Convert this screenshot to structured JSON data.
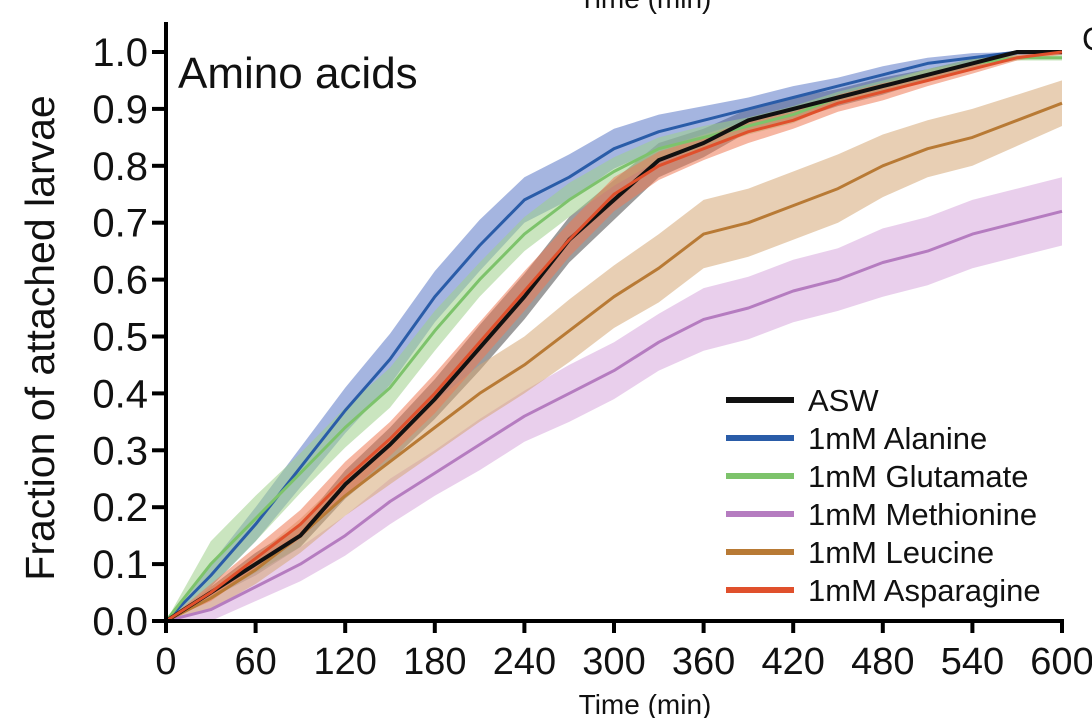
{
  "chart_data": {
    "type": "line",
    "title": "Amino acids",
    "top_clipped_text": "Time (min)",
    "corner_clipped_text": "C",
    "xlabel": "Time (min)",
    "ylabel": "Fraction of attached  larvae",
    "xlim": [
      0,
      600
    ],
    "ylim": [
      0,
      1.0
    ],
    "x_ticks": [
      "0",
      "60",
      "120",
      "180",
      "240",
      "300",
      "360",
      "420",
      "480",
      "540",
      "600"
    ],
    "y_ticks": [
      "0.0",
      "0.1",
      "0.2",
      "0.3",
      "0.4",
      "0.5",
      "0.6",
      "0.7",
      "0.8",
      "0.9",
      "1.0"
    ],
    "grid": false,
    "legend_position": "bottom-right",
    "x": [
      0,
      30,
      60,
      90,
      120,
      150,
      180,
      210,
      240,
      270,
      300,
      330,
      360,
      390,
      420,
      450,
      480,
      510,
      540,
      570,
      600
    ],
    "series": [
      {
        "name": "ASW",
        "color": "#111111",
        "band_color": "#4a4a4a",
        "values": [
          0,
          0.05,
          0.1,
          0.15,
          0.24,
          0.31,
          0.39,
          0.48,
          0.57,
          0.67,
          0.74,
          0.81,
          0.84,
          0.88,
          0.9,
          0.92,
          0.94,
          0.96,
          0.98,
          1.0,
          1.0
        ],
        "spread": [
          0,
          0.01,
          0.02,
          0.02,
          0.025,
          0.03,
          0.035,
          0.04,
          0.04,
          0.04,
          0.035,
          0.03,
          0.025,
          0.02,
          0.02,
          0.015,
          0.015,
          0.01,
          0.008,
          0.005,
          0.005
        ]
      },
      {
        "name": "1mM Alanine",
        "color": "#2a5ca8",
        "band_color": "#5b78c6",
        "values": [
          0,
          0.08,
          0.17,
          0.27,
          0.37,
          0.46,
          0.57,
          0.66,
          0.74,
          0.78,
          0.83,
          0.86,
          0.88,
          0.9,
          0.92,
          0.94,
          0.96,
          0.98,
          0.99,
          1.0,
          1.0
        ],
        "spread": [
          0,
          0.02,
          0.03,
          0.035,
          0.04,
          0.045,
          0.045,
          0.045,
          0.04,
          0.04,
          0.035,
          0.03,
          0.025,
          0.02,
          0.02,
          0.015,
          0.015,
          0.01,
          0.008,
          0.005,
          0.005
        ]
      },
      {
        "name": "1mM Glutamate",
        "color": "#7dc36b",
        "band_color": "#9ed08a",
        "values": [
          0,
          0.1,
          0.18,
          0.26,
          0.34,
          0.41,
          0.51,
          0.6,
          0.68,
          0.74,
          0.79,
          0.83,
          0.85,
          0.87,
          0.89,
          0.92,
          0.94,
          0.96,
          0.98,
          0.99,
          0.99
        ],
        "spread": [
          0,
          0.04,
          0.04,
          0.035,
          0.035,
          0.035,
          0.035,
          0.03,
          0.03,
          0.03,
          0.025,
          0.02,
          0.02,
          0.015,
          0.015,
          0.01,
          0.01,
          0.01,
          0.008,
          0.005,
          0.005
        ]
      },
      {
        "name": "1mM Methionine",
        "color": "#b57cc0",
        "band_color": "#d7a8dc",
        "values": [
          0,
          0.02,
          0.06,
          0.1,
          0.15,
          0.21,
          0.26,
          0.31,
          0.36,
          0.4,
          0.44,
          0.49,
          0.53,
          0.55,
          0.58,
          0.6,
          0.63,
          0.65,
          0.68,
          0.7,
          0.72
        ],
        "spread": [
          0,
          0.02,
          0.025,
          0.03,
          0.035,
          0.04,
          0.04,
          0.045,
          0.045,
          0.05,
          0.05,
          0.05,
          0.055,
          0.055,
          0.055,
          0.055,
          0.06,
          0.06,
          0.06,
          0.06,
          0.06
        ]
      },
      {
        "name": "1mM Leucine",
        "color": "#b87a35",
        "band_color": "#d5a876",
        "values": [
          0,
          0.04,
          0.09,
          0.15,
          0.22,
          0.28,
          0.34,
          0.4,
          0.45,
          0.51,
          0.57,
          0.62,
          0.68,
          0.7,
          0.73,
          0.76,
          0.8,
          0.83,
          0.85,
          0.88,
          0.91
        ],
        "spread": [
          0,
          0.02,
          0.025,
          0.03,
          0.035,
          0.04,
          0.045,
          0.05,
          0.05,
          0.055,
          0.055,
          0.06,
          0.06,
          0.06,
          0.06,
          0.06,
          0.055,
          0.05,
          0.05,
          0.045,
          0.04
        ]
      },
      {
        "name": "1mM Asparagine",
        "color": "#e0502c",
        "band_color": "#ef7a55",
        "values": [
          0,
          0.05,
          0.11,
          0.17,
          0.25,
          0.32,
          0.4,
          0.49,
          0.58,
          0.67,
          0.75,
          0.8,
          0.83,
          0.86,
          0.88,
          0.91,
          0.93,
          0.95,
          0.97,
          0.99,
          1.0
        ],
        "spread": [
          0,
          0.015,
          0.02,
          0.025,
          0.03,
          0.03,
          0.035,
          0.035,
          0.035,
          0.03,
          0.03,
          0.025,
          0.02,
          0.02,
          0.015,
          0.015,
          0.015,
          0.01,
          0.008,
          0.005,
          0.005
        ]
      }
    ]
  }
}
